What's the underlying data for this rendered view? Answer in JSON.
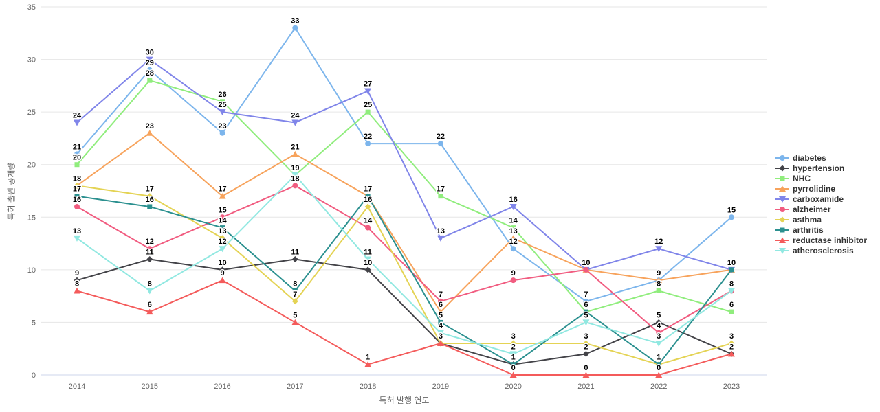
{
  "chart": {
    "ylabel": "특허 출원 공개량",
    "xlabel": "특허 발행 연도"
  },
  "chart_data": {
    "type": "line",
    "title": "",
    "xlabel": "특허 발행 연도",
    "ylabel": "특허 출원 공개량",
    "x": [
      2014,
      2015,
      2016,
      2017,
      2018,
      2019,
      2020,
      2021,
      2022,
      2023
    ],
    "ylim": [
      0,
      35
    ],
    "yticks": [
      0,
      5,
      10,
      15,
      20,
      25,
      30,
      35
    ],
    "grid": true,
    "legend_position": "right",
    "data_labels": true,
    "colors": {
      "grid": "#e6e6e6",
      "axis_line": "#ccd6eb",
      "tick_label": "#666666",
      "axis_title": "#666666",
      "legend_text": "#333333",
      "data_label": "#000000",
      "background": "#ffffff"
    },
    "series": [
      {
        "name": "diabetes",
        "color": "#7cb5ec",
        "marker": "circle",
        "values": [
          21,
          29,
          23,
          33,
          22,
          22,
          12,
          7,
          9,
          15
        ]
      },
      {
        "name": "hypertension",
        "color": "#434348",
        "marker": "diamond",
        "values": [
          9,
          11,
          10,
          11,
          10,
          3,
          1,
          2,
          5,
          2
        ]
      },
      {
        "name": "NHC",
        "color": "#90ed7d",
        "marker": "square",
        "values": [
          20,
          28,
          26,
          19,
          25,
          17,
          14,
          6,
          8,
          6
        ]
      },
      {
        "name": "pyrrolidine",
        "color": "#f7a35c",
        "marker": "triangle-up",
        "values": [
          18,
          23,
          17,
          21,
          17,
          6,
          13,
          10,
          9,
          10
        ]
      },
      {
        "name": "carboxamide",
        "color": "#8085e9",
        "marker": "triangle-down",
        "values": [
          24,
          30,
          25,
          24,
          27,
          13,
          16,
          10,
          12,
          10
        ]
      },
      {
        "name": "alzheimer",
        "color": "#f15c80",
        "marker": "circle",
        "values": [
          16,
          12,
          15,
          18,
          14,
          7,
          9,
          10,
          4,
          8
        ]
      },
      {
        "name": "asthma",
        "color": "#e4d354",
        "marker": "diamond",
        "values": [
          18,
          17,
          13,
          7,
          16,
          3,
          3,
          3,
          1,
          3
        ]
      },
      {
        "name": "arthritis",
        "color": "#2b908f",
        "marker": "square",
        "values": [
          17,
          16,
          14,
          8,
          17,
          5,
          1,
          6,
          1,
          10
        ]
      },
      {
        "name": "reductase inhibitor",
        "color": "#f45b5b",
        "marker": "triangle-up",
        "values": [
          8,
          6,
          9,
          5,
          1,
          3,
          0,
          0,
          0,
          2
        ]
      },
      {
        "name": "atherosclerosis",
        "color": "#91e8e1",
        "marker": "triangle-down",
        "values": [
          13,
          8,
          12,
          19,
          11,
          4,
          2,
          5,
          3,
          8
        ]
      }
    ]
  }
}
